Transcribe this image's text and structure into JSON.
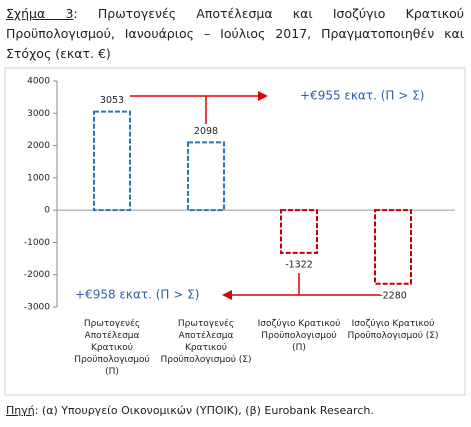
{
  "figure_label": "Σχήμα 3",
  "title": "Πρωτογενές Αποτέλεσμα και Ισοζύγιο Κρατικού Προϋπολογισμού, Ιανουάριος – Ιούλιος 2017, Πραγματοποιηθέν και Στόχος (εκατ. €)",
  "chart_data": {
    "type": "bar",
    "categories": [
      "Πρωτογενές Αποτέλεσμα Κρατικού Προϋπολογισμού (Π)",
      "Πρωτογενές Αποτέλεσμα Κρατικού Προϋπολογισμού (Σ)",
      "Ισοζύγιο Κρατικού Προϋπολογισμού (Π)",
      "Ισοζύγιο Κρατικού Προϋπολογισμού (Σ)"
    ],
    "values": [
      3053,
      2098,
      -1322,
      -2280
    ],
    "colors": [
      "#2e75b6",
      "#2e75b6",
      "#c00000",
      "#c00000"
    ],
    "ylim": [
      -3000,
      4000
    ],
    "yticks": [
      -3000,
      -2000,
      -1000,
      0,
      1000,
      2000,
      3000,
      4000
    ],
    "grid": false,
    "annotations": [
      "+€955 εκατ. (Π > Σ)",
      "+€958 εκατ. (Π > Σ)"
    ]
  },
  "source_label": "Πηγή",
  "source": ": (α) Υπουργείο Οικονομικών (ΥΠΟΙΚ), (β) Eurobank Research."
}
